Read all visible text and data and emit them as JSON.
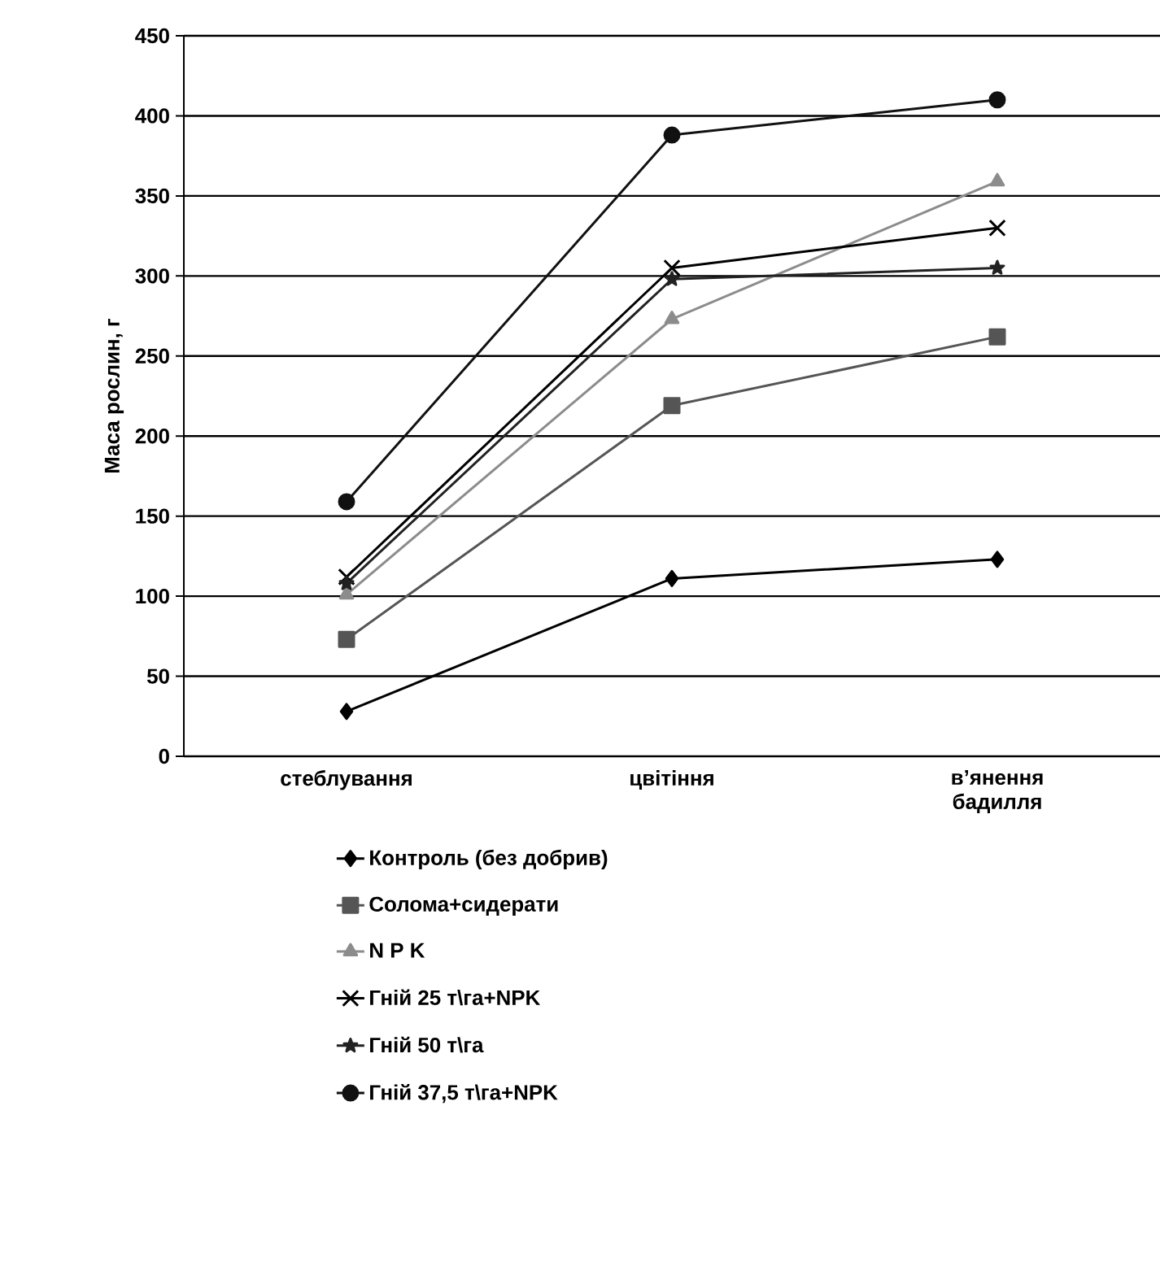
{
  "chart_data": {
    "type": "line",
    "ylabel": "Маса рослин, г",
    "categories": [
      "стеблування",
      "цвітіння",
      "в’янення бадилля"
    ],
    "ylim": [
      0,
      450
    ],
    "yticks": [
      0,
      50,
      100,
      150,
      200,
      250,
      300,
      350,
      400,
      450
    ],
    "grid": "y",
    "legend": "bottom",
    "series": [
      {
        "name": "Контроль (без добрив)",
        "color": "#000000",
        "marker": "diamond",
        "values": [
          28,
          111,
          123
        ]
      },
      {
        "name": "Солома+сидерати",
        "color": "#555555",
        "marker": "square",
        "values": [
          73,
          219,
          262
        ]
      },
      {
        "name": "N P K",
        "color": "#8c8c8c",
        "marker": "triangle",
        "values": [
          101,
          273,
          359
        ]
      },
      {
        "name": "Гній 25 т\\га+NPK",
        "color": "#000000",
        "marker": "cross",
        "values": [
          112,
          305,
          330
        ]
      },
      {
        "name": "Гній 50 т\\га",
        "color": "#222222",
        "marker": "star",
        "values": [
          108,
          298,
          305
        ]
      },
      {
        "name": "Гній 37,5 т\\га+NPK",
        "color": "#111111",
        "marker": "circle",
        "values": [
          159,
          388,
          410
        ]
      }
    ]
  }
}
